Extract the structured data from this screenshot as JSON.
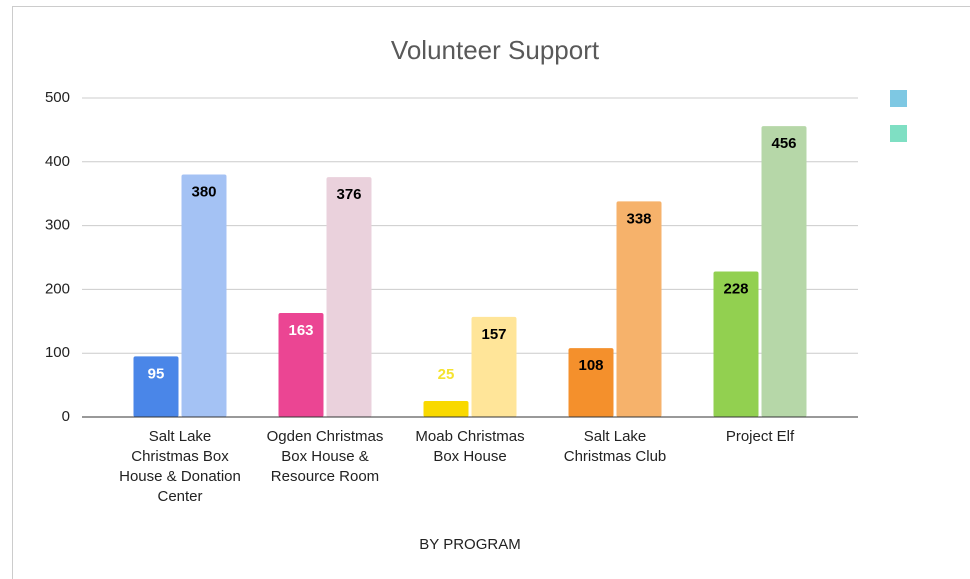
{
  "chart_data": {
    "type": "bar",
    "title": "Volunteer Support",
    "x_label": "BY PROGRAM",
    "categories": [
      "Salt Lake Christmas Box House & Donation Center",
      "Ogden Christmas Box House & Resource Room",
      "Moab Christmas Box House",
      "Salt Lake Christmas Club",
      "Project Elf"
    ],
    "series": [
      {
        "color": "#7ec8e3",
        "values": [
          95,
          163,
          25,
          108,
          228
        ],
        "colors": [
          "#4a86e8",
          "#eb4593",
          "#f9d900",
          "#f4902c",
          "#92d050"
        ],
        "label_colors": [
          "#ffffff",
          "#ffffff",
          "#f5e330",
          "#000000",
          "#000000"
        ]
      },
      {
        "color": "#7fdfc3",
        "values": [
          380,
          376,
          157,
          338,
          456
        ],
        "colors": [
          "#a4c2f4",
          "#ead1dc",
          "#ffe599",
          "#f6b26b",
          "#b6d7a8"
        ],
        "label_colors": [
          "#000000",
          "#000000",
          "#000000",
          "#000000",
          "#000000"
        ]
      }
    ],
    "ylim": [
      0,
      500
    ],
    "yticks": [
      0,
      100,
      200,
      300,
      400,
      500
    ],
    "grid": true,
    "legend": "right"
  }
}
